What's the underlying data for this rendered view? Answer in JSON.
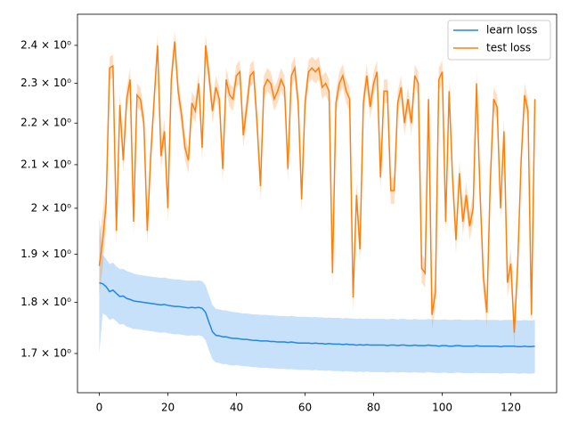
{
  "chart_data": {
    "type": "line",
    "log_y": true,
    "legend": "upper right",
    "xlim": [
      -6.35,
      133.35
    ],
    "xticks": [
      0,
      20,
      40,
      60,
      80,
      100,
      120
    ],
    "ylim": [
      1.627,
      2.485
    ],
    "yticks": [
      {
        "value": 1.7,
        "label": "1.7 × 10⁰"
      },
      {
        "value": 1.8,
        "label": "1.8 × 10⁰"
      },
      {
        "value": 1.9,
        "label": "1.9 × 10⁰"
      },
      {
        "value": 2.0,
        "label": "2 × 10⁰"
      },
      {
        "value": 2.1,
        "label": "2.1 × 10⁰"
      },
      {
        "value": 2.2,
        "label": "2.2 × 10⁰"
      },
      {
        "value": 2.3,
        "label": "2.3 × 10⁰"
      },
      {
        "value": 2.4,
        "label": "2.4 × 10⁰"
      }
    ],
    "x": [
      0,
      1,
      2,
      3,
      4,
      5,
      6,
      7,
      8,
      9,
      10,
      11,
      12,
      13,
      14,
      15,
      16,
      17,
      18,
      19,
      20,
      21,
      22,
      23,
      24,
      25,
      26,
      27,
      28,
      29,
      30,
      31,
      32,
      33,
      34,
      35,
      36,
      37,
      38,
      39,
      40,
      41,
      42,
      43,
      44,
      45,
      46,
      47,
      48,
      49,
      50,
      51,
      52,
      53,
      54,
      55,
      56,
      57,
      58,
      59,
      60,
      61,
      62,
      63,
      64,
      65,
      66,
      67,
      68,
      69,
      70,
      71,
      72,
      73,
      74,
      75,
      76,
      77,
      78,
      79,
      80,
      81,
      82,
      83,
      84,
      85,
      86,
      87,
      88,
      89,
      90,
      91,
      92,
      93,
      94,
      95,
      96,
      97,
      98,
      99,
      100,
      101,
      102,
      103,
      104,
      105,
      106,
      107,
      108,
      109,
      110,
      111,
      112,
      113,
      114,
      115,
      116,
      117,
      118,
      119,
      120,
      121,
      122,
      123,
      124,
      125,
      126,
      127
    ],
    "series": [
      {
        "name": "learn loss",
        "color": "#1f86ea",
        "values": [
          1.84,
          1.838,
          1.832,
          1.822,
          1.825,
          1.818,
          1.812,
          1.813,
          1.808,
          1.806,
          1.803,
          1.802,
          1.801,
          1.8,
          1.799,
          1.798,
          1.797,
          1.796,
          1.795,
          1.796,
          1.794,
          1.793,
          1.792,
          1.792,
          1.791,
          1.79,
          1.789,
          1.79,
          1.789,
          1.79,
          1.788,
          1.78,
          1.76,
          1.742,
          1.735,
          1.734,
          1.732,
          1.732,
          1.73,
          1.729,
          1.729,
          1.728,
          1.727,
          1.727,
          1.726,
          1.725,
          1.725,
          1.724,
          1.724,
          1.724,
          1.723,
          1.723,
          1.722,
          1.722,
          1.722,
          1.721,
          1.722,
          1.721,
          1.72,
          1.72,
          1.72,
          1.72,
          1.719,
          1.72,
          1.719,
          1.719,
          1.718,
          1.719,
          1.718,
          1.718,
          1.718,
          1.717,
          1.718,
          1.717,
          1.717,
          1.716,
          1.717,
          1.716,
          1.717,
          1.716,
          1.716,
          1.716,
          1.716,
          1.716,
          1.715,
          1.716,
          1.716,
          1.715,
          1.716,
          1.716,
          1.715,
          1.715,
          1.716,
          1.715,
          1.715,
          1.715,
          1.716,
          1.715,
          1.715,
          1.714,
          1.715,
          1.715,
          1.714,
          1.714,
          1.715,
          1.715,
          1.714,
          1.714,
          1.714,
          1.714,
          1.715,
          1.714,
          1.714,
          1.714,
          1.714,
          1.714,
          1.714,
          1.713,
          1.714,
          1.714,
          1.714,
          1.714,
          1.713,
          1.713,
          1.714,
          1.713,
          1.713,
          1.714
        ],
        "errors": [
          0.14,
          0.06,
          0.058,
          0.057,
          0.057,
          0.056,
          0.056,
          0.056,
          0.056,
          0.056,
          0.056,
          0.055,
          0.055,
          0.055,
          0.055,
          0.055,
          0.055,
          0.055,
          0.055,
          0.055,
          0.055,
          0.055,
          0.055,
          0.055,
          0.055,
          0.055,
          0.055,
          0.055,
          0.055,
          0.055,
          0.055,
          0.055,
          0.054,
          0.053,
          0.052,
          0.052,
          0.052,
          0.052,
          0.052,
          0.052,
          0.051,
          0.051,
          0.051,
          0.051,
          0.051,
          0.051,
          0.051,
          0.051,
          0.051,
          0.051,
          0.051,
          0.051,
          0.051,
          0.051,
          0.051,
          0.051,
          0.051,
          0.051,
          0.051,
          0.051,
          0.051,
          0.051,
          0.051,
          0.051,
          0.051,
          0.051,
          0.051,
          0.051,
          0.051,
          0.051,
          0.051,
          0.051,
          0.051,
          0.051,
          0.051,
          0.051,
          0.051,
          0.051,
          0.051,
          0.051,
          0.051,
          0.051,
          0.051,
          0.051,
          0.051,
          0.051,
          0.051,
          0.051,
          0.051,
          0.051,
          0.051,
          0.051,
          0.051,
          0.051,
          0.051,
          0.051,
          0.051,
          0.051,
          0.051,
          0.051,
          0.051,
          0.051,
          0.051,
          0.051,
          0.051,
          0.051,
          0.051,
          0.051,
          0.051,
          0.051,
          0.051,
          0.051,
          0.051,
          0.051,
          0.051,
          0.051,
          0.051,
          0.051,
          0.051,
          0.051,
          0.051,
          0.051,
          0.051,
          0.051,
          0.051,
          0.051,
          0.051,
          0.051
        ]
      },
      {
        "name": "test loss",
        "color": "#ff7f0e",
        "values": [
          1.875,
          1.93,
          2.01,
          2.34,
          2.345,
          1.95,
          2.245,
          2.11,
          2.26,
          2.31,
          1.97,
          2.27,
          2.26,
          2.2,
          1.95,
          2.12,
          2.26,
          2.4,
          2.12,
          2.18,
          2.0,
          2.31,
          2.41,
          2.28,
          2.22,
          2.14,
          2.11,
          2.25,
          2.23,
          2.3,
          2.14,
          2.4,
          2.32,
          2.23,
          2.29,
          2.26,
          2.09,
          2.31,
          2.27,
          2.26,
          2.32,
          2.33,
          2.17,
          2.24,
          2.32,
          2.33,
          2.2,
          2.05,
          2.29,
          2.31,
          2.3,
          2.26,
          2.28,
          2.31,
          2.29,
          2.09,
          2.32,
          2.34,
          2.25,
          2.02,
          2.25,
          2.33,
          2.34,
          2.33,
          2.34,
          2.29,
          2.3,
          2.28,
          1.86,
          2.25,
          2.3,
          2.32,
          2.28,
          2.26,
          1.81,
          2.03,
          1.91,
          2.25,
          2.32,
          2.24,
          2.3,
          2.33,
          2.07,
          2.28,
          2.28,
          2.04,
          2.04,
          2.25,
          2.29,
          2.2,
          2.26,
          2.2,
          2.32,
          2.3,
          1.87,
          1.86,
          2.26,
          1.775,
          1.82,
          2.31,
          2.33,
          1.97,
          2.28,
          2.07,
          1.93,
          2.08,
          1.97,
          2.03,
          1.96,
          2.0,
          2.3,
          2.04,
          1.85,
          1.78,
          2.06,
          2.26,
          2.24,
          2.0,
          2.18,
          1.84,
          1.88,
          1.74,
          1.88,
          2.11,
          2.27,
          2.23,
          1.775,
          2.26
        ],
        "errors": [
          0.06,
          0.06,
          0.05,
          0.03,
          0.03,
          0.03,
          0.03,
          0.03,
          0.03,
          0.03,
          0.03,
          0.03,
          0.03,
          0.03,
          0.03,
          0.03,
          0.03,
          0.03,
          0.03,
          0.03,
          0.03,
          0.03,
          0.03,
          0.03,
          0.03,
          0.03,
          0.03,
          0.03,
          0.03,
          0.03,
          0.03,
          0.03,
          0.03,
          0.03,
          0.03,
          0.03,
          0.03,
          0.03,
          0.03,
          0.03,
          0.03,
          0.03,
          0.03,
          0.03,
          0.03,
          0.03,
          0.03,
          0.03,
          0.03,
          0.03,
          0.03,
          0.03,
          0.03,
          0.03,
          0.03,
          0.03,
          0.03,
          0.03,
          0.03,
          0.03,
          0.03,
          0.03,
          0.03,
          0.03,
          0.03,
          0.03,
          0.03,
          0.03,
          0.03,
          0.03,
          0.03,
          0.03,
          0.03,
          0.03,
          0.03,
          0.03,
          0.03,
          0.03,
          0.03,
          0.03,
          0.03,
          0.03,
          0.03,
          0.03,
          0.03,
          0.03,
          0.03,
          0.03,
          0.03,
          0.03,
          0.03,
          0.03,
          0.03,
          0.03,
          0.03,
          0.03,
          0.03,
          0.03,
          0.03,
          0.03,
          0.03,
          0.03,
          0.03,
          0.03,
          0.03,
          0.03,
          0.03,
          0.03,
          0.03,
          0.03,
          0.03,
          0.03,
          0.03,
          0.03,
          0.03,
          0.03,
          0.03,
          0.03,
          0.03,
          0.03,
          0.03,
          0.03,
          0.03,
          0.03,
          0.03,
          0.03,
          0.03,
          0.03
        ]
      }
    ]
  }
}
